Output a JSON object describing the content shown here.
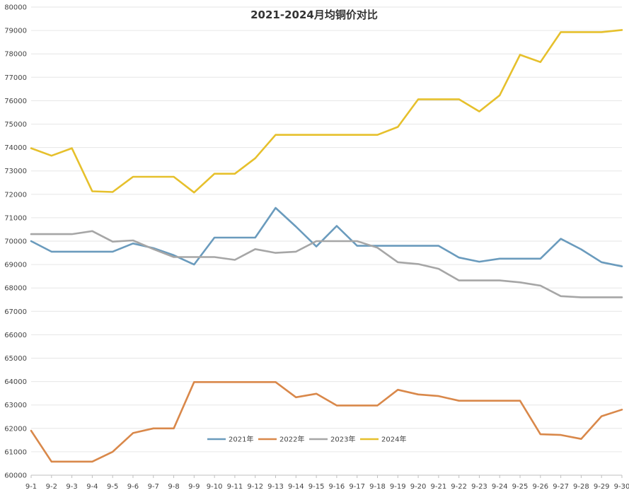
{
  "chart_data": {
    "type": "line",
    "title": "2021-2024月均铜价对比",
    "xlabel": "",
    "ylabel": "",
    "ylim": [
      60000,
      80000
    ],
    "yticks": [
      60000,
      61000,
      62000,
      63000,
      64000,
      65000,
      66000,
      67000,
      68000,
      69000,
      70000,
      71000,
      72000,
      73000,
      74000,
      75000,
      76000,
      77000,
      78000,
      79000,
      80000
    ],
    "grid": true,
    "legend_position": "bottom-center",
    "categories": [
      "9-1",
      "9-2",
      "9-3",
      "9-4",
      "9-5",
      "9-6",
      "9-7",
      "9-8",
      "9-9",
      "9-10",
      "9-11",
      "9-12",
      "9-13",
      "9-14",
      "9-15",
      "9-16",
      "9-17",
      "9-18",
      "9-19",
      "9-20",
      "9-21",
      "9-22",
      "9-23",
      "9-24",
      "9-25",
      "9-26",
      "9-27",
      "9-28",
      "9-29",
      "9-30"
    ],
    "series": [
      {
        "name": "2021年",
        "color": "#6a9bbd",
        "values": [
          70000,
          69550,
          69550,
          69550,
          69550,
          69900,
          69700,
          69400,
          69000,
          70150,
          70150,
          70150,
          71420,
          70620,
          69770,
          70650,
          69800,
          69800,
          69800,
          69800,
          69800,
          69300,
          69120,
          69250,
          69250,
          69250,
          70100,
          69650,
          69100,
          68920
        ]
      },
      {
        "name": "2022年",
        "color": "#d9884a",
        "values": [
          61900,
          60580,
          60580,
          60580,
          61000,
          61800,
          62000,
          62000,
          63980,
          63980,
          63980,
          63980,
          63980,
          63330,
          63480,
          62980,
          62980,
          62980,
          63650,
          63450,
          63380,
          63180,
          63180,
          63180,
          63180,
          61750,
          61720,
          61550,
          62520,
          62800
        ]
      },
      {
        "name": "2023年",
        "color": "#a6a6a6",
        "values": [
          70300,
          70300,
          70300,
          70430,
          69980,
          70030,
          69660,
          69320,
          69320,
          69320,
          69200,
          69660,
          69500,
          69550,
          70000,
          70000,
          70000,
          69720,
          69100,
          69020,
          68820,
          68320,
          68320,
          68320,
          68240,
          68100,
          67650,
          67600,
          67600,
          67600
        ]
      },
      {
        "name": "2024年",
        "color": "#e6c02c",
        "values": [
          73970,
          73650,
          73970,
          72130,
          72100,
          72750,
          72750,
          72750,
          72080,
          72880,
          72880,
          73540,
          74540,
          74540,
          74540,
          74540,
          74540,
          74540,
          74880,
          76060,
          76060,
          76060,
          75540,
          76230,
          77960,
          77650,
          78930,
          78930,
          78930,
          79020
        ]
      }
    ]
  }
}
